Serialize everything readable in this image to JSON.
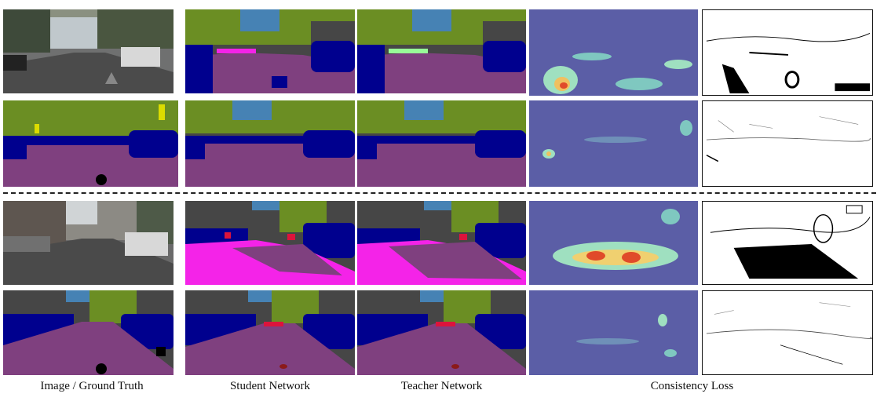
{
  "figure": {
    "columns": [
      {
        "label": "Image / Ground Truth"
      },
      {
        "label": "Student Network"
      },
      {
        "label": "Teacher Network"
      },
      {
        "label": "Consistency Loss"
      }
    ],
    "colors": {
      "road": "#7f407f",
      "sky": "#4682b4",
      "vegetation": "#6b8e23",
      "building": "#464646",
      "car": "#00008e",
      "sidewalk": "#f423e8",
      "person": "#dc143c",
      "sign": "#dcdc00",
      "terrain": "#98fb98",
      "heat_low": "#5b5ea6",
      "heat_mid": "#9fe0c0",
      "heat_high": "#e04a2a"
    }
  }
}
